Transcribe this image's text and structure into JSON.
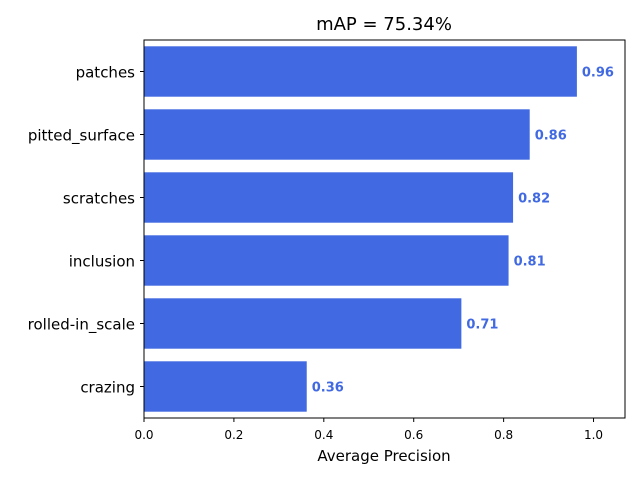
{
  "chart_data": {
    "type": "bar",
    "orientation": "horizontal",
    "title": "mAP = 75.34%",
    "xlabel": "Average Precision",
    "ylabel": "",
    "categories": [
      "patches",
      "pitted_surface",
      "scratches",
      "inclusion",
      "rolled-in_scale",
      "crazing"
    ],
    "values": [
      0.963,
      0.858,
      0.821,
      0.811,
      0.706,
      0.362
    ],
    "value_labels": [
      "0.96",
      "0.86",
      "0.82",
      "0.81",
      "0.71",
      "0.36"
    ],
    "xlim": [
      0,
      1.07
    ],
    "xticks": [
      "0.0",
      "0.2",
      "0.4",
      "0.6",
      "0.8",
      "1.0"
    ],
    "grid": false,
    "bar_color": "#4169e1",
    "label_color": "#4169e1"
  }
}
